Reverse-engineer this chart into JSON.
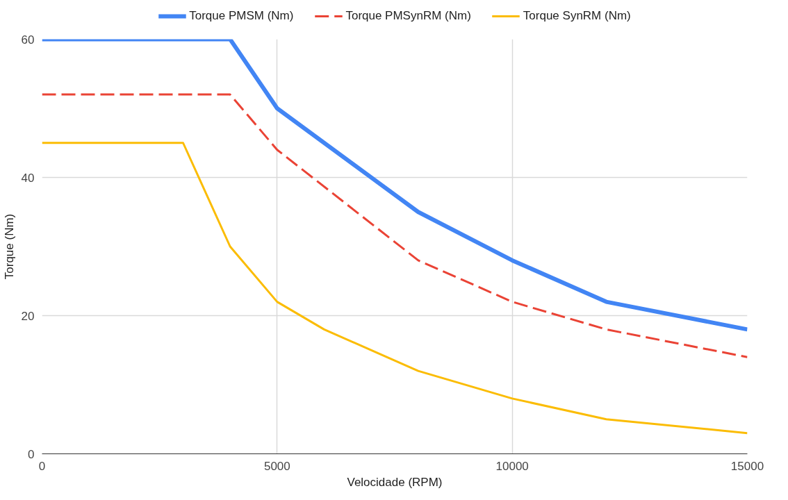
{
  "chart_data": {
    "type": "line",
    "xlabel": "Velocidade (RPM)",
    "ylabel": "Torque (Nm)",
    "xlim": [
      0,
      15000
    ],
    "ylim": [
      0,
      60
    ],
    "xticks": [
      0,
      5000,
      10000,
      15000
    ],
    "yticks": [
      0,
      20,
      40,
      60
    ],
    "grid": true,
    "legend": "top",
    "marker": "none",
    "series": [
      {
        "name": "Torque PMSM (Nm)",
        "color": "#4285f4",
        "line_style": "solid",
        "x": [
          0,
          4000,
          5000,
          8000,
          10000,
          12000,
          15000
        ],
        "values": [
          60,
          60,
          50,
          35,
          28,
          22,
          18
        ]
      },
      {
        "name": "Torque PMSynRM (Nm)",
        "color": "#ea4335",
        "line_style": "dashed",
        "x": [
          0,
          4000,
          5000,
          8000,
          10000,
          12000,
          15000
        ],
        "values": [
          52,
          52,
          44,
          28,
          22,
          18,
          14
        ]
      },
      {
        "name": "Torque SynRM (Nm)",
        "color": "#fbbc04",
        "line_style": "solid",
        "x": [
          0,
          3000,
          4000,
          5000,
          6000,
          8000,
          10000,
          12000,
          15000
        ],
        "values": [
          45,
          45,
          30,
          22,
          18,
          12,
          8,
          5,
          3
        ]
      }
    ]
  }
}
